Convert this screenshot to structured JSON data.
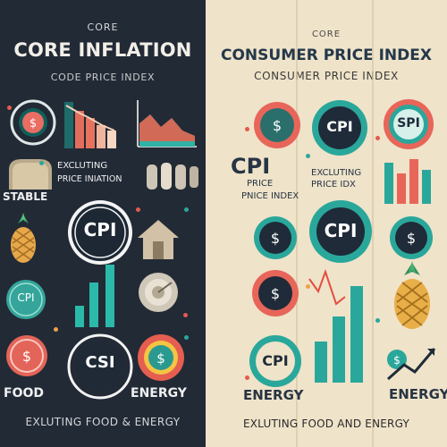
{
  "left": {
    "kicker": "CORE",
    "title": "CORE INFLATION",
    "subtitle": "CODE PRICE INDEX",
    "footer": "EXLUTING FOOD & ENERGY",
    "cpi_circle_1": "CPI",
    "cpi_circle_2": "CPI",
    "csi_circle": "CSI",
    "excluding_line_1": "EXCLUTING",
    "excluding_line_2": "PRICE INIATION",
    "stable": "STABLE",
    "food": "FOOD",
    "energy": "ENERGY"
  },
  "right": {
    "kicker": "CORE",
    "title": "CONSUMER PRICE INDEX",
    "subtitle": "CONSUMER PRICE INDEX",
    "footer": "EXLUTING FOOD AND ENERGY",
    "cpi_large_left": "CPI",
    "cpi_medium": "CPI",
    "cpi_top_center": "CPI",
    "spi_label": "SPI",
    "cpi_bottom_left": "CPI",
    "excluding_line_1": "EXCLUTING",
    "excluding_line_2": "PRICE IDX",
    "pnice_line_1": "PRICE",
    "pnice_line_2": "PNICE INDEX",
    "energy_left": "ENERGY",
    "energy_right": "ENERGY"
  },
  "colors": {
    "left_bg": "#222a36",
    "right_bg": "#efe3c9",
    "teal": "#2aa79b",
    "red": "#e35b4d",
    "orange": "#f0a247",
    "gold": "#d4a54a",
    "navy": "#1f2b39"
  }
}
